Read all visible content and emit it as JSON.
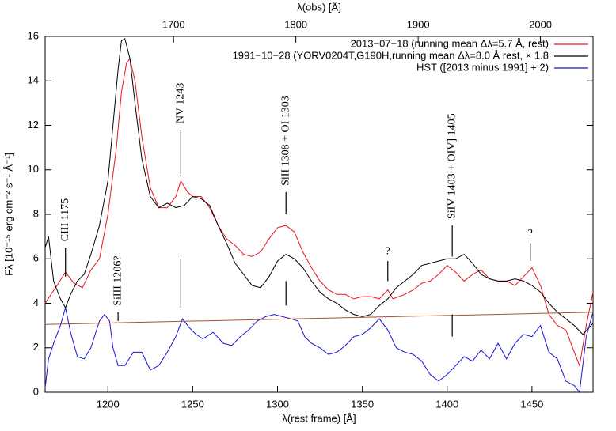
{
  "chart_data": {
    "type": "line",
    "xlabel": "λ(rest frame) [Å]",
    "x2label": "λ(obs) [Å]",
    "ylabel": "Fλ [10⁻¹⁵ erg cm⁻² s⁻¹ Å⁻¹]",
    "xlim": [
      1163,
      1486
    ],
    "xticks": [
      1200,
      1250,
      1300,
      1350,
      1400,
      1450
    ],
    "x2lim": [
      1595,
      2043
    ],
    "x2ticks": [
      1700,
      1800,
      1900,
      2000
    ],
    "ylim": [
      0,
      16
    ],
    "yticks": [
      0,
      2,
      4,
      6,
      8,
      10,
      12,
      14,
      16
    ],
    "legend": "top-right",
    "series": [
      {
        "name": "2013−07−18 (running mean Δλ=5.7 Å, rest)",
        "color": "#e8141c",
        "x": [
          1163,
          1170,
          1175,
          1180,
          1185,
          1190,
          1195,
          1200,
          1205,
          1208,
          1211,
          1213,
          1216,
          1220,
          1225,
          1230,
          1235,
          1240,
          1243,
          1247,
          1250,
          1255,
          1260,
          1265,
          1270,
          1275,
          1280,
          1285,
          1290,
          1295,
          1300,
          1305,
          1310,
          1315,
          1320,
          1325,
          1330,
          1335,
          1340,
          1345,
          1350,
          1355,
          1360,
          1365,
          1368,
          1375,
          1380,
          1385,
          1390,
          1395,
          1400,
          1405,
          1410,
          1415,
          1420,
          1425,
          1430,
          1435,
          1440,
          1445,
          1450,
          1455,
          1460,
          1465,
          1470,
          1475,
          1478,
          1482,
          1486
        ],
        "values": [
          4.0,
          4.8,
          5.4,
          4.9,
          4.7,
          5.5,
          6.0,
          8.0,
          11.0,
          13.5,
          14.8,
          15.0,
          14.0,
          11.5,
          9.2,
          8.3,
          8.3,
          8.8,
          9.5,
          9.0,
          8.8,
          8.8,
          8.3,
          7.5,
          6.9,
          6.6,
          6.2,
          6.1,
          6.3,
          6.9,
          7.4,
          7.5,
          7.2,
          6.3,
          5.6,
          5.0,
          4.6,
          4.4,
          4.4,
          4.2,
          4.3,
          4.3,
          4.2,
          4.6,
          4.2,
          4.4,
          4.6,
          4.9,
          5.0,
          5.3,
          5.7,
          5.4,
          5.0,
          5.3,
          5.5,
          5.1,
          5.0,
          5.0,
          4.8,
          5.2,
          5.6,
          4.8,
          3.5,
          3.0,
          2.8,
          1.8,
          1.2,
          3.0,
          4.5
        ]
      },
      {
        "name": "1991−10−28 (YORV0204T,G190H,running mean Δλ=8.0 Å rest, × 1.8",
        "color": "#000000",
        "x": [
          1163,
          1165,
          1168,
          1172,
          1175,
          1178,
          1182,
          1186,
          1190,
          1195,
          1200,
          1203,
          1206,
          1208,
          1210,
          1213,
          1216,
          1220,
          1225,
          1230,
          1235,
          1240,
          1245,
          1250,
          1255,
          1260,
          1265,
          1270,
          1275,
          1280,
          1285,
          1290,
          1295,
          1300,
          1305,
          1310,
          1315,
          1320,
          1325,
          1330,
          1335,
          1340,
          1345,
          1350,
          1355,
          1360,
          1365,
          1370,
          1375,
          1380,
          1385,
          1390,
          1395,
          1400,
          1405,
          1410,
          1415,
          1420,
          1425,
          1430,
          1435,
          1440,
          1445,
          1450,
          1455,
          1460,
          1465,
          1470,
          1475,
          1480,
          1486
        ],
        "values": [
          6.5,
          7.0,
          5.0,
          4.2,
          3.8,
          4.4,
          5.0,
          5.3,
          6.2,
          7.5,
          9.5,
          12.0,
          14.5,
          15.8,
          15.9,
          15.0,
          13.0,
          10.5,
          8.8,
          8.3,
          8.5,
          8.3,
          8.4,
          8.8,
          8.7,
          8.4,
          7.5,
          6.7,
          5.8,
          5.3,
          4.8,
          4.7,
          5.2,
          5.9,
          6.2,
          6.0,
          5.6,
          5.0,
          4.5,
          4.2,
          4.0,
          3.7,
          3.5,
          3.4,
          3.5,
          3.9,
          4.2,
          4.7,
          5.0,
          5.3,
          5.7,
          5.8,
          5.9,
          6.0,
          6.0,
          6.2,
          5.8,
          5.3,
          5.1,
          5.0,
          5.0,
          5.1,
          5.0,
          4.8,
          4.5,
          4.0,
          3.6,
          3.3,
          3.0,
          2.6,
          3.1
        ]
      },
      {
        "name": "HST ([2013 minus 1991] + 2)",
        "color": "#1515d8",
        "x": [
          1163,
          1165,
          1168,
          1172,
          1175,
          1178,
          1182,
          1186,
          1190,
          1195,
          1198,
          1201,
          1203,
          1206,
          1210,
          1215,
          1220,
          1225,
          1230,
          1235,
          1240,
          1244,
          1248,
          1252,
          1256,
          1262,
          1268,
          1273,
          1278,
          1283,
          1288,
          1293,
          1298,
          1303,
          1308,
          1312,
          1316,
          1320,
          1325,
          1330,
          1335,
          1340,
          1345,
          1350,
          1355,
          1360,
          1365,
          1370,
          1375,
          1380,
          1385,
          1390,
          1395,
          1400,
          1405,
          1410,
          1415,
          1420,
          1425,
          1430,
          1435,
          1440,
          1445,
          1450,
          1455,
          1460,
          1465,
          1470,
          1475,
          1478,
          1482,
          1486
        ],
        "values": [
          0.2,
          1.5,
          2.2,
          3.0,
          3.8,
          2.7,
          1.6,
          1.5,
          2.0,
          3.2,
          3.5,
          3.2,
          2.0,
          1.2,
          1.2,
          1.8,
          1.8,
          1.0,
          1.2,
          1.8,
          2.5,
          3.3,
          2.9,
          2.6,
          2.4,
          2.7,
          2.2,
          2.1,
          2.5,
          2.8,
          3.2,
          3.4,
          3.5,
          3.4,
          3.3,
          3.2,
          2.5,
          2.2,
          2.0,
          1.7,
          1.8,
          2.1,
          2.5,
          2.6,
          2.9,
          3.3,
          2.8,
          2.0,
          1.8,
          1.7,
          1.4,
          0.8,
          0.5,
          0.8,
          1.2,
          1.6,
          1.4,
          1.9,
          1.5,
          2.2,
          1.5,
          2.2,
          2.6,
          2.5,
          3.0,
          1.8,
          1.5,
          0.5,
          0.3,
          0.0,
          2.5,
          3.6
        ]
      },
      {
        "color": "#a0522d",
        "x": [
          1163,
          1486
        ],
        "values": [
          3.05,
          3.6
        ]
      }
    ],
    "annotations": [
      {
        "text": "CIII 1175",
        "x": 1175,
        "lines": [
          [
            6.5,
            5.2
          ]
        ]
      },
      {
        "text": "SiIII 1206?",
        "x": 1206,
        "lines": [
          [
            3.6,
            3.2
          ]
        ]
      },
      {
        "text": "NV 1243",
        "x": 1243,
        "lines": [
          [
            11.8,
            9.7
          ],
          [
            6.0,
            3.8
          ]
        ]
      },
      {
        "text": "SiII 1308 + OI 1303",
        "x": 1305,
        "lines": [
          [
            9.0,
            8.0
          ],
          [
            5.0,
            3.9
          ]
        ]
      },
      {
        "text": "?",
        "x": 1365,
        "lines": [
          [
            5.9,
            5.0
          ]
        ]
      },
      {
        "text": "SiIV 1403 + OIV] 1405",
        "x": 1403,
        "lines": [
          [
            7.5,
            6.1
          ],
          [
            3.5,
            2.5
          ]
        ]
      },
      {
        "text": "?",
        "x": 1449,
        "lines": [
          [
            6.7,
            5.9
          ]
        ]
      }
    ]
  }
}
